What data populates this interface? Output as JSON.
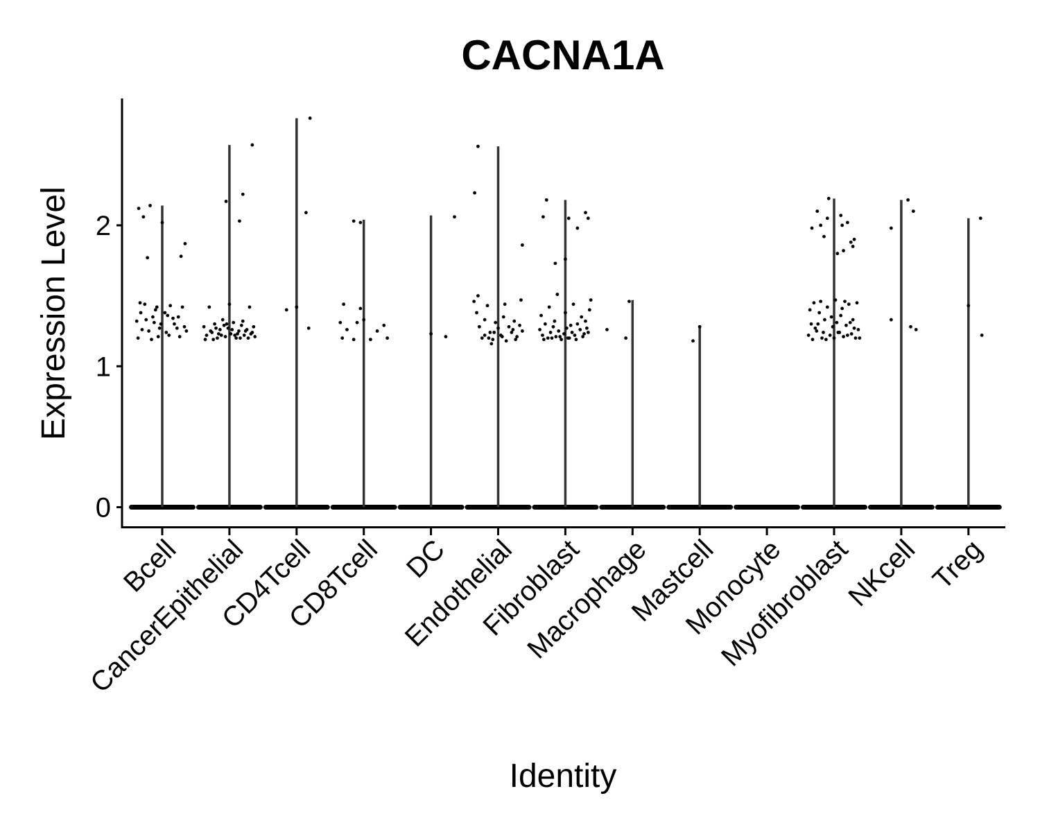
{
  "chart_data": {
    "type": "violin",
    "title": "CACNA1A",
    "xlabel": "Identity",
    "ylabel": "Expression Level",
    "ylim": [
      -0.14,
      2.9
    ],
    "yticks": [
      0,
      1,
      2
    ],
    "legend": "none",
    "grid": false,
    "colors": {
      "line": "#333333",
      "point": "#000000",
      "axis": "#000000"
    },
    "categories": [
      "Bcell",
      "CancerEpithelial",
      "CD4Tcell",
      "CD8Tcell",
      "DC",
      "Endothelial",
      "Fibroblast",
      "Macrophage",
      "Mastcell",
      "Monocyte",
      "Myofibroblast",
      "NKcell",
      "Treg"
    ],
    "series": [
      {
        "category": "Bcell",
        "max": 2.14,
        "points": [
          [
            -0.35,
            2.12
          ],
          [
            -0.28,
            2.06
          ],
          [
            -0.18,
            2.14
          ],
          [
            0.0,
            2.02
          ],
          [
            0.28,
            1.78
          ],
          [
            0.34,
            1.87
          ],
          [
            -0.22,
            1.77
          ],
          [
            -0.38,
            1.32
          ],
          [
            -0.32,
            1.38
          ],
          [
            -0.26,
            1.44
          ],
          [
            -0.2,
            1.25
          ],
          [
            -0.14,
            1.35
          ],
          [
            -0.08,
            1.42
          ],
          [
            -0.02,
            1.3
          ],
          [
            0.04,
            1.38
          ],
          [
            0.1,
            1.22
          ],
          [
            0.16,
            1.34
          ],
          [
            0.22,
            1.27
          ],
          [
            0.3,
            1.42
          ],
          [
            0.36,
            1.25
          ],
          [
            -0.36,
            1.2
          ],
          [
            -0.3,
            1.26
          ],
          [
            -0.24,
            1.33
          ],
          [
            -0.16,
            1.19
          ],
          [
            -0.1,
            1.4
          ],
          [
            -0.04,
            1.27
          ],
          [
            0.06,
            1.24
          ],
          [
            0.12,
            1.43
          ],
          [
            0.18,
            1.3
          ],
          [
            0.26,
            1.21
          ],
          [
            0.33,
            1.28
          ],
          [
            -0.33,
            1.45
          ],
          [
            -0.12,
            1.31
          ],
          [
            0.08,
            1.36
          ],
          [
            0.24,
            1.35
          ],
          [
            -0.06,
            1.21
          ]
        ]
      },
      {
        "category": "CancerEpithelial",
        "max": 2.57,
        "points": [
          [
            0.34,
            2.57
          ],
          [
            0.2,
            2.22
          ],
          [
            -0.05,
            2.17
          ],
          [
            0.15,
            2.03
          ],
          [
            -0.38,
            1.28
          ],
          [
            -0.34,
            1.22
          ],
          [
            -0.3,
            1.42
          ],
          [
            -0.26,
            1.24
          ],
          [
            -0.22,
            1.3
          ],
          [
            -0.18,
            1.2
          ],
          [
            -0.14,
            1.26
          ],
          [
            -0.1,
            1.33
          ],
          [
            -0.06,
            1.21
          ],
          [
            -0.02,
            1.27
          ],
          [
            0.02,
            1.23
          ],
          [
            0.06,
            1.31
          ],
          [
            0.1,
            1.2
          ],
          [
            0.14,
            1.25
          ],
          [
            0.18,
            1.29
          ],
          [
            0.22,
            1.22
          ],
          [
            0.26,
            1.26
          ],
          [
            0.3,
            1.42
          ],
          [
            0.34,
            1.24
          ],
          [
            0.38,
            1.21
          ],
          [
            -0.36,
            1.19
          ],
          [
            -0.28,
            1.25
          ],
          [
            -0.2,
            1.27
          ],
          [
            -0.12,
            1.22
          ],
          [
            -0.04,
            1.3
          ],
          [
            0.04,
            1.26
          ],
          [
            0.12,
            1.23
          ],
          [
            0.2,
            1.32
          ],
          [
            0.28,
            1.2
          ],
          [
            0.36,
            1.28
          ],
          [
            -0.24,
            1.19
          ],
          [
            0.0,
            1.44
          ],
          [
            0.08,
            1.22
          ],
          [
            0.16,
            1.2
          ],
          [
            0.24,
            1.25
          ],
          [
            0.32,
            1.23
          ],
          [
            -0.16,
            1.23
          ],
          [
            -0.08,
            1.29
          ]
        ]
      },
      {
        "category": "CD4Tcell",
        "max": 2.76,
        "points": [
          [
            0.2,
            2.76
          ],
          [
            0.14,
            2.09
          ],
          [
            -0.15,
            1.4
          ],
          [
            0.0,
            1.42
          ],
          [
            0.18,
            1.27
          ]
        ]
      },
      {
        "category": "CD8Tcell",
        "max": 2.04,
        "points": [
          [
            -0.15,
            2.03
          ],
          [
            -0.05,
            2.02
          ],
          [
            -0.3,
            1.44
          ],
          [
            -0.35,
            1.31
          ],
          [
            -0.25,
            1.26
          ],
          [
            -0.15,
            1.19
          ],
          [
            -0.1,
            1.31
          ],
          [
            -0.05,
            1.41
          ],
          [
            0.0,
            1.33
          ],
          [
            0.1,
            1.19
          ],
          [
            0.2,
            1.25
          ],
          [
            0.3,
            1.29
          ],
          [
            0.35,
            1.2
          ],
          [
            -0.32,
            1.2
          ]
        ]
      },
      {
        "category": "DC",
        "max": 2.07,
        "points": [
          [
            0.35,
            2.06
          ],
          [
            0.0,
            1.23
          ],
          [
            0.22,
            1.21
          ]
        ]
      },
      {
        "category": "Endothelial",
        "max": 2.56,
        "points": [
          [
            -0.3,
            2.56
          ],
          [
            -0.35,
            2.23
          ],
          [
            0.36,
            1.86
          ],
          [
            -0.36,
            1.46
          ],
          [
            -0.32,
            1.38
          ],
          [
            -0.28,
            1.28
          ],
          [
            -0.24,
            1.2
          ],
          [
            -0.2,
            1.33
          ],
          [
            -0.16,
            1.43
          ],
          [
            -0.12,
            1.24
          ],
          [
            -0.08,
            1.19
          ],
          [
            -0.04,
            1.31
          ],
          [
            0.0,
            1.27
          ],
          [
            0.04,
            1.22
          ],
          [
            0.08,
            1.35
          ],
          [
            0.12,
            1.18
          ],
          [
            0.16,
            1.28
          ],
          [
            0.2,
            1.24
          ],
          [
            0.24,
            1.32
          ],
          [
            0.28,
            1.21
          ],
          [
            0.32,
            1.29
          ],
          [
            0.36,
            1.25
          ],
          [
            -0.3,
            1.5
          ],
          [
            -0.2,
            1.22
          ],
          [
            -0.1,
            1.16
          ],
          [
            0.1,
            1.44
          ],
          [
            0.22,
            1.26
          ],
          [
            0.34,
            1.47
          ],
          [
            -0.14,
            1.2
          ],
          [
            0.06,
            1.21
          ],
          [
            0.26,
            1.19
          ],
          [
            -0.06,
            1.24
          ]
        ]
      },
      {
        "category": "Fibroblast",
        "max": 2.18,
        "points": [
          [
            -0.33,
            2.06
          ],
          [
            -0.28,
            2.18
          ],
          [
            0.18,
            1.98
          ],
          [
            0.05,
            2.05
          ],
          [
            0.3,
            2.09
          ],
          [
            0.0,
            1.76
          ],
          [
            -0.15,
            1.73
          ],
          [
            0.34,
            2.05
          ],
          [
            -0.38,
            1.26
          ],
          [
            -0.34,
            1.22
          ],
          [
            -0.3,
            1.3
          ],
          [
            -0.26,
            1.2
          ],
          [
            -0.22,
            1.24
          ],
          [
            -0.18,
            1.28
          ],
          [
            -0.14,
            1.21
          ],
          [
            -0.1,
            1.25
          ],
          [
            -0.06,
            1.19
          ],
          [
            -0.02,
            1.23
          ],
          [
            0.02,
            1.27
          ],
          [
            0.06,
            1.2
          ],
          [
            0.1,
            1.24
          ],
          [
            0.14,
            1.22
          ],
          [
            0.18,
            1.3
          ],
          [
            0.22,
            1.26
          ],
          [
            0.26,
            1.21
          ],
          [
            0.3,
            1.32
          ],
          [
            0.34,
            1.24
          ],
          [
            0.38,
            1.47
          ],
          [
            -0.36,
            1.36
          ],
          [
            -0.24,
            1.42
          ],
          [
            -0.12,
            1.51
          ],
          [
            0.0,
            1.38
          ],
          [
            0.12,
            1.44
          ],
          [
            0.24,
            1.35
          ],
          [
            0.36,
            1.4
          ],
          [
            -0.32,
            1.19
          ],
          [
            -0.2,
            1.2
          ],
          [
            -0.08,
            1.21
          ],
          [
            0.04,
            1.2
          ],
          [
            0.16,
            1.19
          ],
          [
            0.28,
            1.23
          ],
          [
            -0.16,
            1.32
          ],
          [
            0.08,
            1.29
          ],
          [
            0.32,
            1.27
          ],
          [
            0.62,
            1.26
          ]
        ]
      },
      {
        "category": "Macrophage",
        "max": 1.47,
        "points": [
          [
            -0.05,
            1.46
          ],
          [
            -0.1,
            1.2
          ]
        ]
      },
      {
        "category": "Mastcell",
        "max": 1.29,
        "points": [
          [
            0.0,
            1.28
          ],
          [
            -0.1,
            1.18
          ]
        ]
      },
      {
        "category": "Monocyte",
        "max": 0,
        "points": []
      },
      {
        "category": "Myofibroblast",
        "max": 2.19,
        "points": [
          [
            -0.08,
            2.19
          ],
          [
            -0.1,
            2.05
          ],
          [
            -0.25,
            2.1
          ],
          [
            0.1,
            2.07
          ],
          [
            0.2,
            2.02
          ],
          [
            -0.2,
            2.0
          ],
          [
            0.25,
            1.88
          ],
          [
            0.28,
            1.85
          ],
          [
            0.14,
            1.82
          ],
          [
            0.05,
            1.8
          ],
          [
            -0.33,
            1.98
          ],
          [
            0.12,
            2.0
          ],
          [
            -0.15,
            1.92
          ],
          [
            0.3,
            1.9
          ],
          [
            -0.38,
            1.22
          ],
          [
            -0.34,
            1.3
          ],
          [
            -0.3,
            1.45
          ],
          [
            -0.26,
            1.25
          ],
          [
            -0.22,
            1.38
          ],
          [
            -0.18,
            1.2
          ],
          [
            -0.14,
            1.33
          ],
          [
            -0.1,
            1.42
          ],
          [
            -0.06,
            1.22
          ],
          [
            -0.02,
            1.28
          ],
          [
            0.02,
            1.47
          ],
          [
            0.06,
            1.24
          ],
          [
            0.1,
            1.36
          ],
          [
            0.14,
            1.21
          ],
          [
            0.18,
            1.29
          ],
          [
            0.22,
            1.44
          ],
          [
            0.26,
            1.23
          ],
          [
            0.3,
            1.27
          ],
          [
            0.34,
            1.45
          ],
          [
            0.38,
            1.2
          ],
          [
            -0.36,
            1.4
          ],
          [
            -0.28,
            1.27
          ],
          [
            -0.2,
            1.46
          ],
          [
            -0.12,
            1.19
          ],
          [
            -0.04,
            1.35
          ],
          [
            0.04,
            1.31
          ],
          [
            0.12,
            1.41
          ],
          [
            0.2,
            1.22
          ],
          [
            0.28,
            1.33
          ],
          [
            0.36,
            1.26
          ],
          [
            -0.32,
            1.19
          ],
          [
            -0.16,
            1.24
          ],
          [
            0.0,
            1.2
          ],
          [
            0.16,
            1.46
          ],
          [
            0.32,
            1.2
          ],
          [
            -0.24,
            1.3
          ],
          [
            0.08,
            1.24
          ],
          [
            0.24,
            1.31
          ]
        ]
      },
      {
        "category": "NKcell",
        "max": 2.18,
        "points": [
          [
            -0.15,
            1.98
          ],
          [
            0.1,
            2.18
          ],
          [
            0.18,
            2.1
          ],
          [
            -0.15,
            1.33
          ],
          [
            0.14,
            1.28
          ],
          [
            0.22,
            1.26
          ]
        ]
      },
      {
        "category": "Treg",
        "max": 2.05,
        "points": [
          [
            0.18,
            2.05
          ],
          [
            0.0,
            1.43
          ],
          [
            0.2,
            1.22
          ]
        ]
      }
    ]
  }
}
